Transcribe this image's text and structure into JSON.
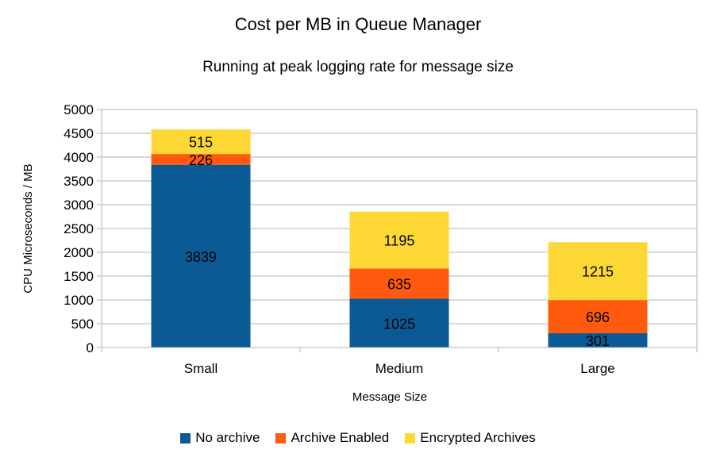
{
  "chart_data": {
    "type": "bar",
    "stacked": true,
    "title": "Cost per MB in Queue Manager",
    "subtitle": "Running at peak logging rate for message size",
    "xlabel": "Message Size",
    "ylabel": "CPU Microseconds / MB",
    "ylim": [
      0,
      5000
    ],
    "yticks": [
      0,
      500,
      1000,
      1500,
      2000,
      2500,
      3000,
      3500,
      4000,
      4500,
      5000
    ],
    "grid": true,
    "legend_position": "bottom",
    "categories": [
      "Small",
      "Medium",
      "Large"
    ],
    "series": [
      {
        "name": "No archive",
        "color": "#0b5a96",
        "values": [
          3839,
          1025,
          301
        ]
      },
      {
        "name": "Archive Enabled",
        "color": "#ff5a0e",
        "values": [
          226,
          635,
          696
        ]
      },
      {
        "name": "Encrypted Archives",
        "color": "#fdd835",
        "values": [
          515,
          1195,
          1215
        ]
      }
    ]
  }
}
